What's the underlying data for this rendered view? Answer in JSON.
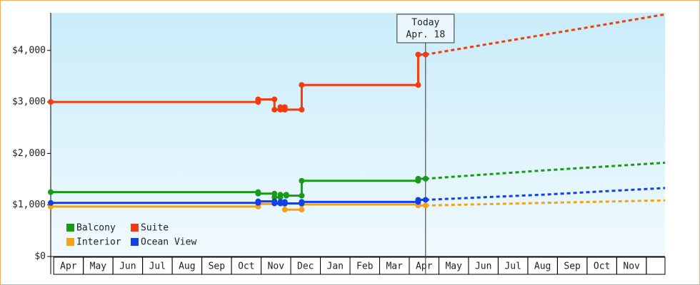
{
  "chart_data": {
    "type": "step-line",
    "categories": [
      "Apr",
      "May",
      "Jun",
      "Jul",
      "Aug",
      "Sep",
      "Oct",
      "Nov",
      "Dec",
      "Jan",
      "Feb",
      "Mar",
      "Apr",
      "May",
      "Jun",
      "Jul",
      "Aug",
      "Sep",
      "Oct",
      "Nov"
    ],
    "xlim": [
      -0.1,
      20.63
    ],
    "ylim": [
      0,
      4730
    ],
    "yticks": [
      {
        "value": 0,
        "label": "$0"
      },
      {
        "value": 1000,
        "label": "$1,000"
      },
      {
        "value": 2000,
        "label": "$2,000"
      },
      {
        "value": 3000,
        "label": "$3,000"
      },
      {
        "value": 4000,
        "label": "$4,000"
      }
    ],
    "grid": false,
    "legend": "lower left",
    "today": {
      "x": 12.55,
      "label": "Today",
      "date": "Apr. 18"
    },
    "series": [
      {
        "name": "Balcony",
        "color": "#1a9a1a",
        "x": [
          -0.1,
          6.9,
          6.9,
          7.45,
          7.45,
          7.65,
          7.65,
          7.85,
          7.85,
          8.37,
          8.37,
          12.3,
          12.3,
          12.55
        ],
        "values": [
          1250,
          1250,
          1220,
          1220,
          1150,
          1150,
          1200,
          1200,
          1180,
          1180,
          1470,
          1470,
          1510,
          1510
        ],
        "projected_x": [
          12.55,
          16.5,
          20.63
        ],
        "projected_values": [
          1510,
          1670,
          1820
        ]
      },
      {
        "name": "Suite",
        "color": "#f03c0f",
        "x": [
          -0.1,
          6.9,
          6.9,
          7.45,
          7.45,
          7.65,
          7.65,
          7.8,
          7.8,
          8.37,
          8.37,
          12.3,
          12.3,
          12.55
        ],
        "values": [
          3000,
          3000,
          3050,
          3050,
          2850,
          2850,
          2900,
          2900,
          2850,
          2850,
          3330,
          3330,
          3920,
          3920
        ],
        "projected_x": [
          12.55,
          16.5,
          20.63
        ],
        "projected_values": [
          3920,
          4300,
          4700
        ]
      },
      {
        "name": "Interior",
        "color": "#f5a316",
        "x": [
          -0.1,
          6.9,
          6.9,
          7.8,
          7.8,
          8.37,
          8.37,
          12.3,
          12.3,
          12.55
        ],
        "values": [
          970,
          970,
          1020,
          1020,
          910,
          910,
          1010,
          1010,
          990,
          990
        ],
        "projected_x": [
          12.55,
          16.5,
          20.63
        ],
        "projected_values": [
          990,
          1040,
          1090
        ]
      },
      {
        "name": "Ocean View",
        "color": "#1240e8",
        "x": [
          -0.1,
          6.9,
          6.9,
          7.45,
          7.45,
          7.65,
          7.65,
          7.8,
          7.8,
          8.37,
          8.37,
          12.3,
          12.3,
          12.55
        ],
        "values": [
          1040,
          1040,
          1070,
          1070,
          1030,
          1030,
          1060,
          1060,
          1030,
          1030,
          1060,
          1060,
          1100,
          1100
        ],
        "projected_x": [
          12.55,
          16.5,
          20.63
        ],
        "projected_values": [
          1100,
          1200,
          1330
        ]
      }
    ]
  }
}
